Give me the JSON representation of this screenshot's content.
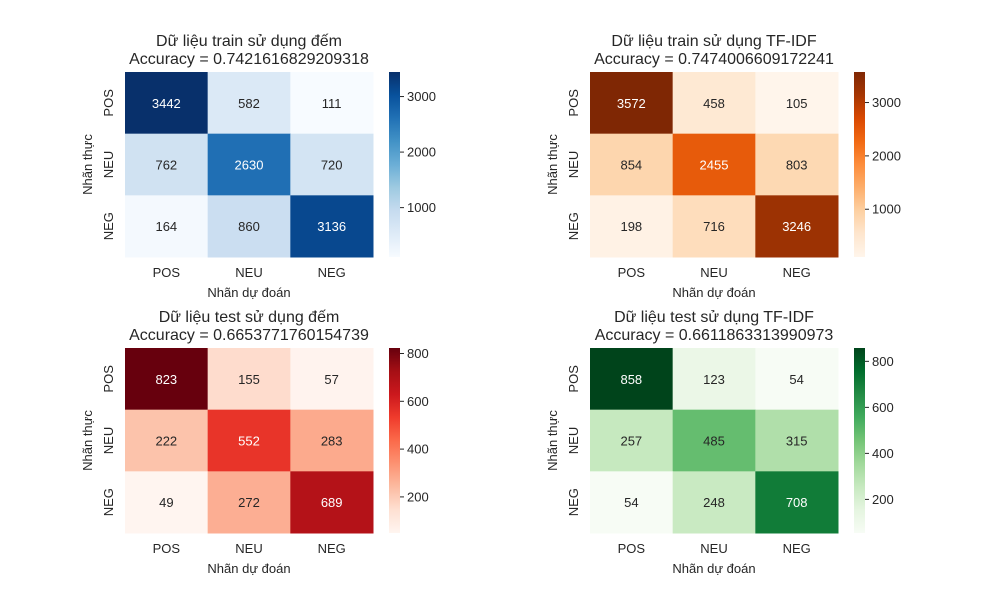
{
  "chart_data": [
    {
      "type": "heatmap",
      "title_line1": "Dữ liệu train sử dụng đếm",
      "title_line2": "Accuracy = 0.7421616829209318",
      "xlabel": "Nhãn dự đoán",
      "ylabel": "Nhãn thực",
      "x_categories": [
        "POS",
        "NEU",
        "NEG"
      ],
      "y_categories": [
        "POS",
        "NEU",
        "NEG"
      ],
      "values": [
        [
          3442,
          582,
          111
        ],
        [
          762,
          2630,
          720
        ],
        [
          164,
          860,
          3136
        ]
      ],
      "colormap": "Blues",
      "colormap_stops": [
        "#f7fbff",
        "#deebf7",
        "#c6dbef",
        "#9ecae1",
        "#6baed6",
        "#4292c6",
        "#2171b5",
        "#08519c",
        "#08306b"
      ],
      "colorbar_ticks": [
        1000,
        2000,
        3000
      ]
    },
    {
      "type": "heatmap",
      "title_line1": "Dữ liệu train sử dụng TF-IDF",
      "title_line2": "Accuracy = 0.7474006609172241",
      "xlabel": "Nhãn dự đoán",
      "ylabel": "Nhãn thực",
      "x_categories": [
        "POS",
        "NEU",
        "NEG"
      ],
      "y_categories": [
        "POS",
        "NEU",
        "NEG"
      ],
      "values": [
        [
          3572,
          458,
          105
        ],
        [
          854,
          2455,
          803
        ],
        [
          198,
          716,
          3246
        ]
      ],
      "colormap": "Oranges",
      "colormap_stops": [
        "#fff5eb",
        "#fee6ce",
        "#fdd0a2",
        "#fdae6b",
        "#fd8d3c",
        "#f16913",
        "#d94801",
        "#a63603",
        "#7f2704"
      ],
      "colorbar_ticks": [
        1000,
        2000,
        3000
      ]
    },
    {
      "type": "heatmap",
      "title_line1": "Dữ liệu test sử dụng đếm",
      "title_line2": "Accuracy = 0.6653771760154739",
      "xlabel": "Nhãn dự đoán",
      "ylabel": "Nhãn thực",
      "x_categories": [
        "POS",
        "NEU",
        "NEG"
      ],
      "y_categories": [
        "POS",
        "NEU",
        "NEG"
      ],
      "values": [
        [
          823,
          155,
          57
        ],
        [
          222,
          552,
          283
        ],
        [
          49,
          272,
          689
        ]
      ],
      "colormap": "Reds",
      "colormap_stops": [
        "#fff5f0",
        "#fee0d2",
        "#fcbba1",
        "#fc9272",
        "#fb6a4a",
        "#ef3b2c",
        "#cb181d",
        "#a50f15",
        "#67000d"
      ],
      "colorbar_ticks": [
        200,
        400,
        600,
        800
      ]
    },
    {
      "type": "heatmap",
      "title_line1": "Dữ liệu test sử dụng TF-IDF",
      "title_line2": "Accuracy = 0.6611863313990973",
      "xlabel": "Nhãn dự đoán",
      "ylabel": "Nhãn thực",
      "x_categories": [
        "POS",
        "NEU",
        "NEG"
      ],
      "y_categories": [
        "POS",
        "NEU",
        "NEG"
      ],
      "values": [
        [
          858,
          123,
          54
        ],
        [
          257,
          485,
          315
        ],
        [
          54,
          248,
          708
        ]
      ],
      "colormap": "Greens",
      "colormap_stops": [
        "#f7fcf5",
        "#e5f5e0",
        "#c7e9c0",
        "#a1d99b",
        "#74c476",
        "#41ab5d",
        "#238b45",
        "#006d2c",
        "#00441b"
      ],
      "colorbar_ticks": [
        200,
        400,
        600,
        800
      ]
    }
  ]
}
